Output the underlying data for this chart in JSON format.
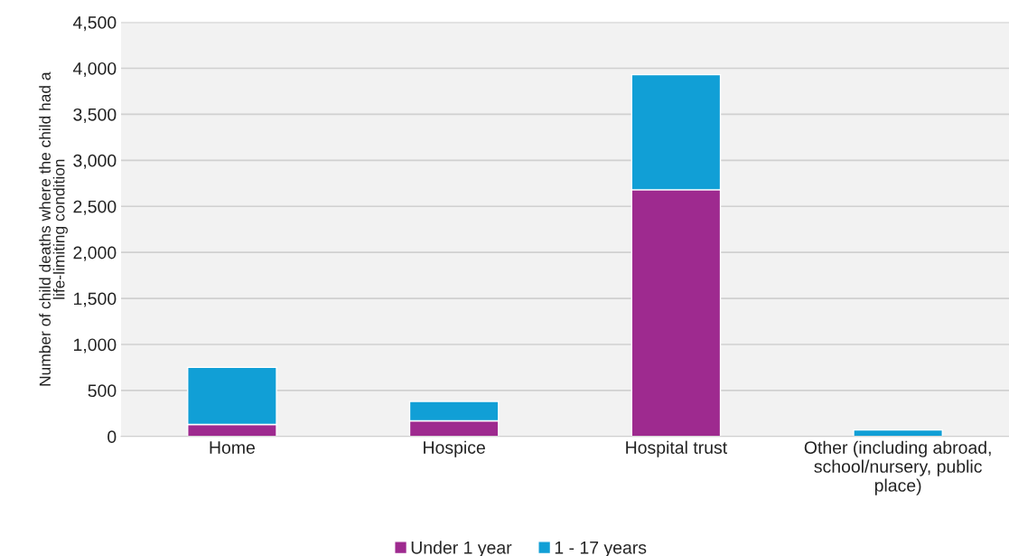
{
  "chart_data": {
    "type": "bar",
    "stacked": true,
    "ylabel": "Number of child deaths where the child had a life-limiting condition",
    "categories": [
      "Home",
      "Hospice",
      "Hospital trust",
      "Other (including abroad, school/nursery, public place)"
    ],
    "series": [
      {
        "name": "Under 1 year",
        "color": "#9e2a8f",
        "values": [
          130,
          170,
          2680,
          0
        ]
      },
      {
        "name": "1 - 17 years",
        "color": "#119fd6",
        "values": [
          620,
          210,
          1250,
          70
        ]
      }
    ],
    "ylim": [
      0,
      4500
    ],
    "yticks": [
      {
        "value": 0,
        "label": "0"
      },
      {
        "value": 500,
        "label": "500"
      },
      {
        "value": 1000,
        "label": "1,000"
      },
      {
        "value": 1500,
        "label": "1,500"
      },
      {
        "value": 2000,
        "label": "2,000"
      },
      {
        "value": 2500,
        "label": "2,500"
      },
      {
        "value": 3000,
        "label": "3,000"
      },
      {
        "value": 3500,
        "label": "3,500"
      },
      {
        "value": 4000,
        "label": "4,000"
      },
      {
        "value": 4500,
        "label": "4,500"
      }
    ],
    "grid": "y",
    "legend": "bottom"
  }
}
